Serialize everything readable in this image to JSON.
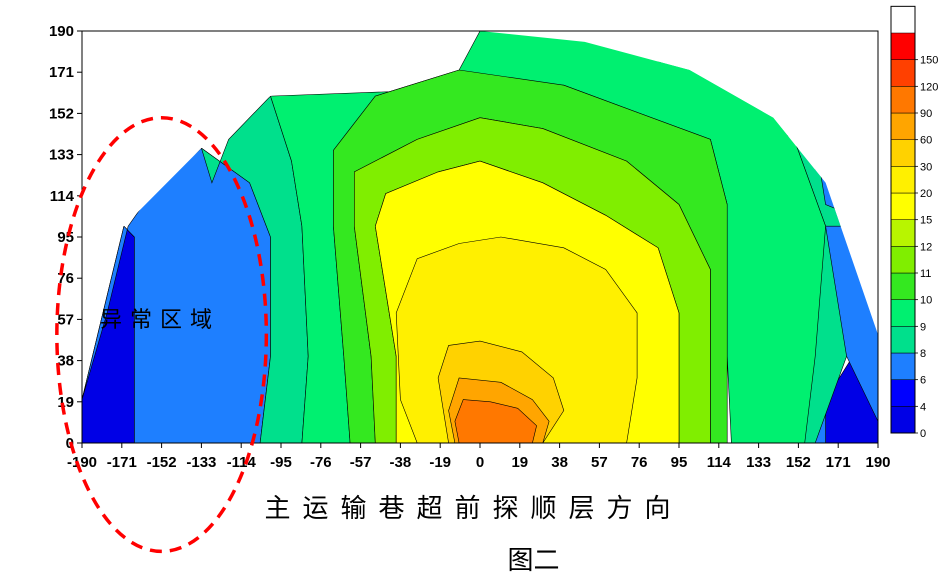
{
  "chart_data": {
    "type": "contour",
    "title": "",
    "xlabel": "主运输巷超前探顺层方向",
    "ylabel": "",
    "caption": "图二",
    "annotation": "异常区域",
    "xlim": [
      -190,
      190
    ],
    "ylim": [
      0,
      190
    ],
    "x_ticks": [
      "-190",
      "-171",
      "-152",
      "-133",
      "-114",
      "-95",
      "-76",
      "-57",
      "-38",
      "-19",
      "0",
      "19",
      "38",
      "57",
      "76",
      "95",
      "114",
      "133",
      "152",
      "171",
      "190"
    ],
    "y_ticks": [
      "190",
      "171",
      "152",
      "133",
      "114",
      "95",
      "76",
      "57",
      "38",
      "19",
      "0"
    ],
    "colorbar": {
      "levels": [
        "0",
        "4",
        "6",
        "8",
        "9",
        "10",
        "11",
        "12",
        "15",
        "20",
        "30",
        "60",
        "90",
        "120",
        "150"
      ],
      "colors": [
        "#0000e6",
        "#0000ff",
        "#1e7fff",
        "#00e08c",
        "#00f070",
        "#34e820",
        "#80ee00",
        "#b8f500",
        "#ffff00",
        "#fff000",
        "#ffd200",
        "#ffa500",
        "#ff7800",
        "#ff4000",
        "#ff0000"
      ]
    },
    "contour_bands": [
      {
        "level": "4",
        "color": "#0000e6",
        "boundary": [
          [
            -190,
            0
          ],
          [
            -190,
            20
          ],
          [
            -180,
            60
          ],
          [
            -170,
            100
          ],
          [
            -165,
            95
          ],
          [
            -165,
            0
          ],
          [
            165,
            0
          ],
          [
            165,
            20
          ],
          [
            178,
            40
          ],
          [
            190,
            10
          ],
          [
            190,
            0
          ]
        ]
      },
      {
        "level": "6",
        "color": "#1e7fff",
        "boundary": [
          [
            -190,
            20
          ],
          [
            -178,
            60
          ],
          [
            -168,
            100
          ],
          [
            -157,
            115
          ],
          [
            -133,
            136
          ],
          [
            -110,
            120
          ],
          [
            -100,
            95
          ],
          [
            -100,
            40
          ],
          [
            -105,
            0
          ],
          [
            90,
            0
          ],
          [
            135,
            0
          ],
          [
            145,
            40
          ],
          [
            160,
            100
          ],
          [
            160,
            200
          ],
          [
            190,
            100
          ],
          [
            190,
            10
          ],
          [
            175,
            40
          ],
          [
            165,
            20
          ],
          [
            165,
            0
          ],
          [
            -165,
            0
          ],
          [
            -165,
            95
          ],
          [
            -170,
            100
          ]
        ]
      },
      {
        "level": "8",
        "color": "#00e08c",
        "boundary": [
          [
            -133,
            136
          ],
          [
            -110,
            120
          ],
          [
            -100,
            95
          ],
          [
            -100,
            40
          ],
          [
            -105,
            0
          ],
          [
            -85,
            0
          ],
          [
            -82,
            40
          ],
          [
            -85,
            100
          ],
          [
            -90,
            130
          ],
          [
            -100,
            160
          ],
          [
            -120,
            140
          ],
          [
            -128,
            120
          ]
        ]
      },
      {
        "level": "8r",
        "color": "#00e08c",
        "boundary": [
          [
            190,
            100
          ],
          [
            165,
            110
          ],
          [
            160,
            140
          ],
          [
            140,
            160
          ],
          [
            100,
            186
          ],
          [
            60,
            190
          ],
          [
            150,
            140
          ],
          [
            165,
            100
          ],
          [
            175,
            40
          ],
          [
            160,
            0
          ],
          [
            135,
            0
          ],
          [
            145,
            40
          ],
          [
            160,
            100
          ]
        ]
      },
      {
        "level": "9",
        "color": "#00f070",
        "boundary": [
          [
            -100,
            160
          ],
          [
            -90,
            130
          ],
          [
            -85,
            100
          ],
          [
            -82,
            40
          ],
          [
            -85,
            0
          ],
          [
            -62,
            0
          ],
          [
            -65,
            40
          ],
          [
            -70,
            100
          ],
          [
            -70,
            135
          ],
          [
            -50,
            160
          ],
          [
            -10,
            172
          ],
          [
            0,
            190
          ],
          [
            60,
            190
          ],
          [
            100,
            186
          ],
          [
            140,
            160
          ],
          [
            150,
            140
          ],
          [
            165,
            100
          ],
          [
            160,
            40
          ],
          [
            155,
            0
          ],
          [
            120,
            0
          ],
          [
            118,
            40
          ],
          [
            118,
            110
          ],
          [
            110,
            140
          ],
          [
            40,
            165
          ]
        ]
      },
      {
        "level": "10",
        "color": "#34e820",
        "boundary": [
          [
            -70,
            135
          ],
          [
            -70,
            100
          ],
          [
            -65,
            40
          ],
          [
            -62,
            0
          ],
          [
            -50,
            0
          ],
          [
            -52,
            40
          ],
          [
            -60,
            100
          ],
          [
            -60,
            125
          ],
          [
            -30,
            140
          ],
          [
            0,
            150
          ],
          [
            30,
            145
          ],
          [
            70,
            130
          ],
          [
            95,
            110
          ],
          [
            110,
            80
          ],
          [
            110,
            0
          ],
          [
            118,
            0
          ],
          [
            118,
            40
          ],
          [
            118,
            110
          ],
          [
            110,
            140
          ],
          [
            40,
            165
          ],
          [
            -10,
            172
          ],
          [
            -50,
            160
          ]
        ]
      },
      {
        "level": "11",
        "color": "#80ee00",
        "boundary": [
          [
            -60,
            125
          ],
          [
            -60,
            100
          ],
          [
            -52,
            40
          ],
          [
            -50,
            0
          ],
          [
            -40,
            0
          ],
          [
            -40,
            40
          ],
          [
            -50,
            100
          ],
          [
            -45,
            115
          ],
          [
            -20,
            125
          ],
          [
            0,
            130
          ],
          [
            30,
            120
          ],
          [
            60,
            105
          ],
          [
            85,
            90
          ],
          [
            95,
            60
          ],
          [
            95,
            0
          ],
          [
            110,
            0
          ],
          [
            110,
            80
          ],
          [
            95,
            110
          ],
          [
            70,
            130
          ],
          [
            30,
            145
          ],
          [
            0,
            150
          ],
          [
            -30,
            140
          ]
        ]
      },
      {
        "level": "12",
        "color": "#ffff00",
        "boundary": [
          [
            -45,
            115
          ],
          [
            -50,
            100
          ],
          [
            -40,
            40
          ],
          [
            -40,
            0
          ],
          [
            95,
            0
          ],
          [
            95,
            60
          ],
          [
            85,
            90
          ],
          [
            60,
            105
          ],
          [
            30,
            120
          ],
          [
            0,
            130
          ],
          [
            -20,
            125
          ]
        ]
      },
      {
        "level": "15",
        "color": "#fff000",
        "boundary": [
          [
            -30,
            85
          ],
          [
            -40,
            60
          ],
          [
            -38,
            20
          ],
          [
            -30,
            0
          ],
          [
            70,
            0
          ],
          [
            75,
            30
          ],
          [
            75,
            60
          ],
          [
            60,
            80
          ],
          [
            40,
            90
          ],
          [
            10,
            95
          ],
          [
            -10,
            92
          ]
        ]
      },
      {
        "level": "20",
        "color": "#ffd200",
        "boundary": [
          [
            -15,
            45
          ],
          [
            -20,
            30
          ],
          [
            -15,
            0
          ],
          [
            30,
            0
          ],
          [
            40,
            15
          ],
          [
            35,
            30
          ],
          [
            20,
            42
          ],
          [
            0,
            47
          ]
        ]
      },
      {
        "level": "30",
        "color": "#ffa500",
        "boundary": [
          [
            -10,
            30
          ],
          [
            -15,
            15
          ],
          [
            -12,
            0
          ],
          [
            30,
            0
          ],
          [
            33,
            10
          ],
          [
            25,
            20
          ],
          [
            10,
            28
          ]
        ]
      },
      {
        "level": "60",
        "color": "#ff7800",
        "boundary": [
          [
            -8,
            20
          ],
          [
            -12,
            10
          ],
          [
            -10,
            0
          ],
          [
            25,
            0
          ],
          [
            27,
            8
          ],
          [
            18,
            16
          ],
          [
            5,
            19
          ]
        ]
      }
    ],
    "anomaly_ellipse": {
      "cx": -152,
      "cy": 50,
      "rx": 50,
      "ry": 100,
      "color": "#ff0000"
    }
  }
}
